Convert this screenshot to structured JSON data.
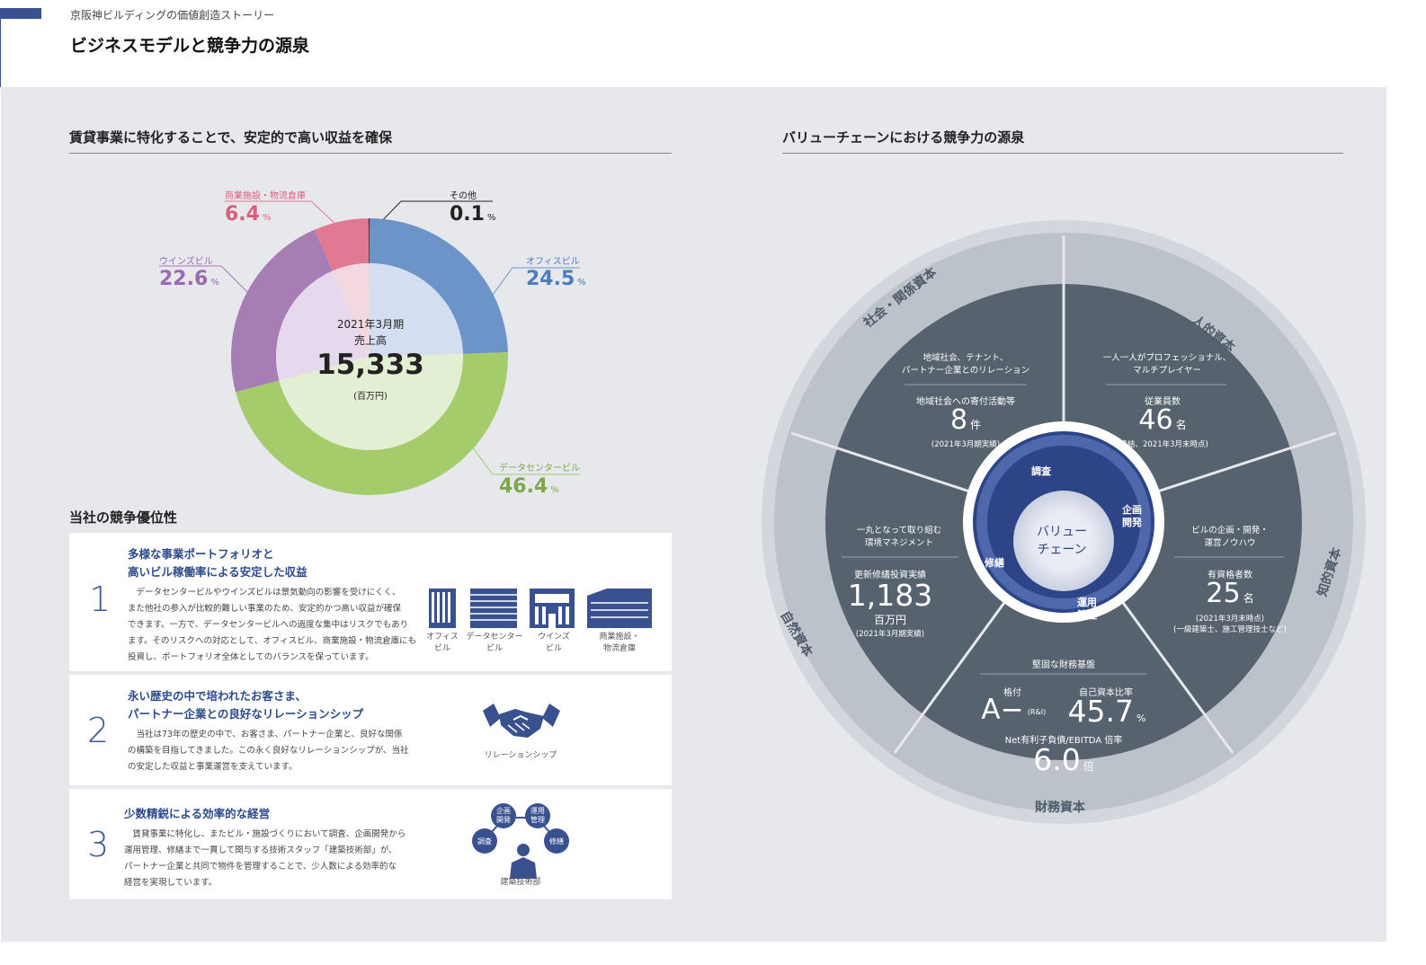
{
  "header": {
    "breadcrumb": "京阪神ビルディングの価値創造ストーリー",
    "title": "ビジネスモデルと競争力の源泉"
  },
  "left": {
    "section_title": "賃貸事業に特化することで、安定的で高い収益を確保",
    "donut_center": {
      "period": "2021年3月期",
      "label": "売上高",
      "value": "15,333",
      "unit": "(百万円)"
    },
    "segments": [
      {
        "name": "オフィスビル",
        "value": "24.5",
        "color": "#6d94c9"
      },
      {
        "name": "データセンタービル",
        "value": "46.4",
        "color": "#a4cc6a"
      },
      {
        "name": "ウインズビル",
        "value": "22.6",
        "color": "#a67db5"
      },
      {
        "name": "商業施設・物流倉庫",
        "value": "6.4",
        "color": "#e07a92"
      },
      {
        "name": "その他",
        "value": "0.1",
        "color": "#222222"
      }
    ],
    "pct_unit": "%"
  },
  "chart_data": {
    "type": "pie",
    "title": "2021年3月期 売上高",
    "total": "15,333",
    "categories": [
      "オフィスビル",
      "データセンタービル",
      "ウインズビル",
      "商業施設・物流倉庫",
      "その他"
    ],
    "values": [
      24.5,
      46.4,
      22.6,
      6.4,
      0.1
    ],
    "colors": [
      "#6d94c9",
      "#a4cc6a",
      "#a67db5",
      "#e07a92",
      "#222222"
    ]
  },
  "advantage": {
    "title": "当社の競争優位性",
    "items": [
      {
        "num": "1",
        "title1": "多様な事業ポートフォリオと",
        "title2": "高いビル稼働率による安定した収益",
        "body": [
          "　データセンタービルやウインズビルは景気動向の影響を受けにくく、",
          "また他社の参入が比較的難しい事業のため、安定的かつ高い収益が確保",
          "できます。一方で、データセンタービルへの過度な集中はリスクでもあり",
          "ます。そのリスクへの対応として、オフィスビル、商業施設・物流倉庫にも",
          "投資し、ポートフォリオ全体としてのバランスを保っています。"
        ],
        "icons": [
          {
            "l1": "オフィス",
            "l2": "ビル"
          },
          {
            "l1": "データセンター",
            "l2": "ビル"
          },
          {
            "l1": "ウインズ",
            "l2": "ビル"
          },
          {
            "l1": "商業施設・",
            "l2": "物流倉庫"
          }
        ]
      },
      {
        "num": "2",
        "title1": "永い歴史の中で培われたお客さま、",
        "title2": "パートナー企業との良好なリレーションシップ",
        "body": [
          "　当社は73年の歴史の中で、お客さま、パートナー企業と、良好な関係",
          "の構築を目指してきました。この永く良好なリレーションシップが、当社",
          "の安定した収益と事業運営を支えています。"
        ],
        "icon_caption": "リレーションシップ"
      },
      {
        "num": "3",
        "title1": "少数精鋭による効率的な経営",
        "title2": "",
        "body": [
          "　賃貸事業に特化し、またビル・施設づくりにおいて調査、企画開発から",
          "運用管理、修繕まで一貫して関与する技術スタッフ「建築技術部」が、",
          "パートナー企業と共同で物件を管理することで、少人数による効率的な",
          "経営を実現しています。"
        ],
        "icon_caption": "建築技術部",
        "bubbles": {
          "a": "企画\n開発",
          "b": "運用\n管理",
          "c": "調査",
          "d": "修繕"
        }
      }
    ]
  },
  "right": {
    "section_title": "バリューチェーンにおける競争力の源泉",
    "capitals": {
      "social": "社会・関係資本",
      "human": "人的資本",
      "intellectual": "知的資本",
      "financial": "財務資本",
      "natural": "自然資本"
    },
    "social": {
      "desc1": "地域社会、テナント、",
      "desc2": "パートナー企業とのリレーション",
      "label": "地域社会への寄付活動等",
      "value": "8",
      "unit": "件",
      "note": "(2021年3月期実績)"
    },
    "human": {
      "desc1": "一人一人がプロフェッショナル、",
      "desc2": "マルチプレイヤー",
      "label": "従業員数",
      "value": "46",
      "unit": "名",
      "note": "(連結、2021年3月末時点)"
    },
    "natural": {
      "desc1": "一丸となって取り組む",
      "desc2": "環境マネジメント",
      "label": "更新修繕投資実績",
      "value": "1,183",
      "unit": "百万円",
      "note": "(2021年3月期実績)"
    },
    "intellectual": {
      "desc1": "ビルの企画・開発・",
      "desc2": "運営ノウハウ",
      "label": "有資格者数",
      "value": "25",
      "unit": "名",
      "note1": "(2021年3月末時点)",
      "note2": "(一級建築士、施工管理技士など)"
    },
    "financial": {
      "title": "堅固な財務基盤",
      "rating_label": "格付",
      "rating": "A−",
      "rating_src": "(R&I)",
      "ratio_label": "自己資本比率",
      "ratio": "45.7",
      "ratio_unit": "%",
      "ebitda_label": "Net有利子負債/EBITDA 倍率",
      "ebitda": "6.0",
      "ebitda_unit": "倍"
    },
    "value_chain": {
      "center1": "バリュー",
      "center2": "チェーン",
      "step1": "調査",
      "step2a": "企画",
      "step2b": "開発",
      "step3a": "運用",
      "step3b": "管理",
      "step4": "修繕"
    }
  }
}
